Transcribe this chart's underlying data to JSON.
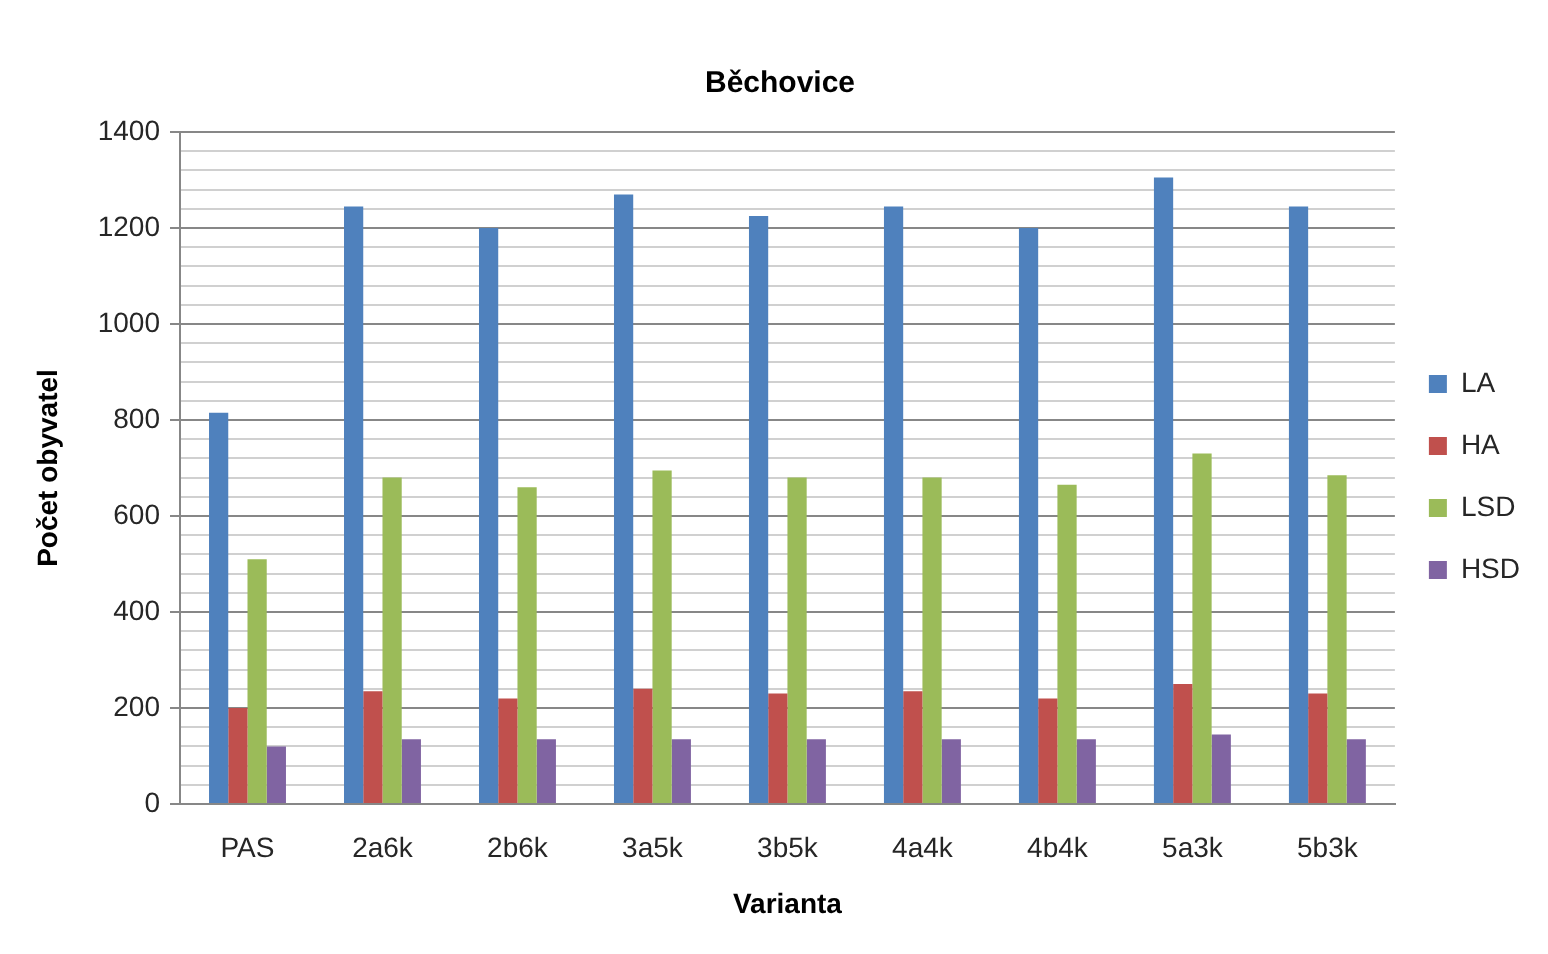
{
  "chart_data": {
    "type": "bar",
    "title": "Běchovice",
    "xlabel": "Varianta",
    "ylabel": "Počet obyvatel",
    "categories": [
      "PAS",
      "2a6k",
      "2b6k",
      "3a5k",
      "3b5k",
      "4a4k",
      "4b4k",
      "5a3k",
      "5b3k"
    ],
    "series": [
      {
        "name": "LA",
        "color": "#4f81bd",
        "values": [
          815,
          1245,
          1200,
          1270,
          1225,
          1245,
          1200,
          1305,
          1245
        ]
      },
      {
        "name": "HA",
        "color": "#c0504d",
        "values": [
          200,
          235,
          220,
          240,
          230,
          235,
          220,
          250,
          230
        ]
      },
      {
        "name": "LSD",
        "color": "#9bbb59",
        "values": [
          510,
          680,
          660,
          695,
          680,
          680,
          665,
          730,
          685
        ]
      },
      {
        "name": "HSD",
        "color": "#8064a2",
        "values": [
          120,
          135,
          135,
          135,
          135,
          135,
          135,
          145,
          135
        ]
      }
    ],
    "ylim": [
      0,
      1400
    ],
    "yticks": [
      0,
      {
        "value": 40,
        "label": null
      },
      {
        "value": 80,
        "label": null
      },
      {
        "value": 120,
        "label": null
      },
      {
        "value": 160,
        "label": null
      },
      200,
      {
        "value": 240,
        "label": null
      },
      {
        "value": 280,
        "label": null
      },
      {
        "value": 320,
        "label": null
      },
      {
        "value": 360,
        "label": null
      },
      400,
      {
        "value": 440,
        "label": null
      },
      {
        "value": 480,
        "label": null
      },
      {
        "value": 520,
        "label": null
      },
      {
        "value": 560,
        "label": null
      },
      600,
      {
        "value": 640,
        "label": null
      },
      {
        "value": 680,
        "label": null
      },
      {
        "value": 720,
        "label": null
      },
      {
        "value": 760,
        "label": null
      },
      800,
      {
        "value": 840,
        "label": null
      },
      {
        "value": 880,
        "label": null
      },
      {
        "value": 920,
        "label": null
      },
      {
        "value": 960,
        "label": null
      },
      1000,
      {
        "value": 1040,
        "label": null
      },
      {
        "value": 1080,
        "label": null
      },
      {
        "value": 1120,
        "label": null
      },
      {
        "value": 1160,
        "label": null
      },
      1200,
      {
        "value": 1240,
        "label": null
      },
      {
        "value": 1280,
        "label": null
      },
      {
        "value": 1320,
        "label": null
      },
      {
        "value": 1360,
        "label": null
      },
      1400
    ],
    "grid": "y",
    "legend": "right"
  }
}
